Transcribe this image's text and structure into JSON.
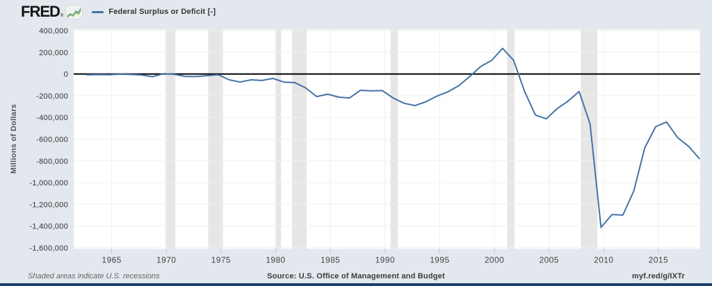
{
  "header": {
    "logo_text": "FRED",
    "registered_mark": "®"
  },
  "footer": {
    "note": "Shaded areas indicate U.S. recessions",
    "source": "Source: U.S. Office of Management and Budget",
    "link": "myf.red/g/IXTr"
  },
  "colors": {
    "page_background": "#e2e8ee",
    "plot_background": "#ffffff",
    "recession_band": "#e6e6e6",
    "gridline": "#efefef",
    "zero_line": "#000000",
    "series_line": "#4572a7",
    "tick_mark": "#b3c6d6",
    "footer_bar": "#1d3e6e"
  },
  "chart_data": {
    "type": "line",
    "title": "Federal Surplus or Deficit [-]",
    "legend": [
      "Federal Surplus or Deficit [-]"
    ],
    "ylabel": "Millions of Dollars",
    "xlabel": "",
    "grid": true,
    "years": [
      1962,
      1963,
      1964,
      1965,
      1966,
      1967,
      1968,
      1969,
      1970,
      1971,
      1972,
      1973,
      1974,
      1975,
      1976,
      1977,
      1978,
      1979,
      1980,
      1981,
      1982,
      1983,
      1984,
      1985,
      1986,
      1987,
      1988,
      1989,
      1990,
      1991,
      1992,
      1993,
      1994,
      1995,
      1996,
      1997,
      1998,
      1999,
      2000,
      2001,
      2002,
      2003,
      2004,
      2005,
      2006,
      2007,
      2008,
      2009,
      2010,
      2011,
      2012,
      2013,
      2014,
      2015,
      2016,
      2017,
      2018
    ],
    "values": [
      -7146,
      -4756,
      -5915,
      -1411,
      -3698,
      -8643,
      -25161,
      3242,
      -2842,
      -23033,
      -23373,
      -14908,
      -6135,
      -53242,
      -73732,
      -53659,
      -59185,
      -40726,
      -73830,
      -78968,
      -127977,
      -207802,
      -185367,
      -212308,
      -221227,
      -149730,
      -155178,
      -152639,
      -221036,
      -269238,
      -290321,
      -255051,
      -203186,
      -163952,
      -107431,
      -21884,
      69270,
      125610,
      236241,
      128236,
      -157758,
      -377585,
      -412727,
      -318346,
      -248181,
      -160701,
      -458553,
      -1412688,
      -1294089,
      -1299595,
      -1076573,
      -679775,
      -484793,
      -441960,
      -584651,
      -665446,
      -779137
    ],
    "point_offset_years": 0.75,
    "x_ticks": [
      1965,
      1970,
      1975,
      1980,
      1985,
      1990,
      1995,
      2000,
      2005,
      2010,
      2015
    ],
    "y_ticks": [
      400000,
      200000,
      0,
      -200000,
      -400000,
      -600000,
      -800000,
      -1000000,
      -1200000,
      -1400000,
      -1600000
    ],
    "xlim": [
      1961.53,
      2018.82
    ],
    "ylim": [
      -1610000,
      410000
    ],
    "recessions": [
      [
        1969.92,
        1970.83
      ],
      [
        1973.83,
        1975.17
      ],
      [
        1980.0,
        1980.5
      ],
      [
        1981.5,
        1982.83
      ],
      [
        1990.5,
        1991.17
      ],
      [
        2001.17,
        2001.83
      ],
      [
        2007.92,
        2009.42
      ]
    ]
  }
}
